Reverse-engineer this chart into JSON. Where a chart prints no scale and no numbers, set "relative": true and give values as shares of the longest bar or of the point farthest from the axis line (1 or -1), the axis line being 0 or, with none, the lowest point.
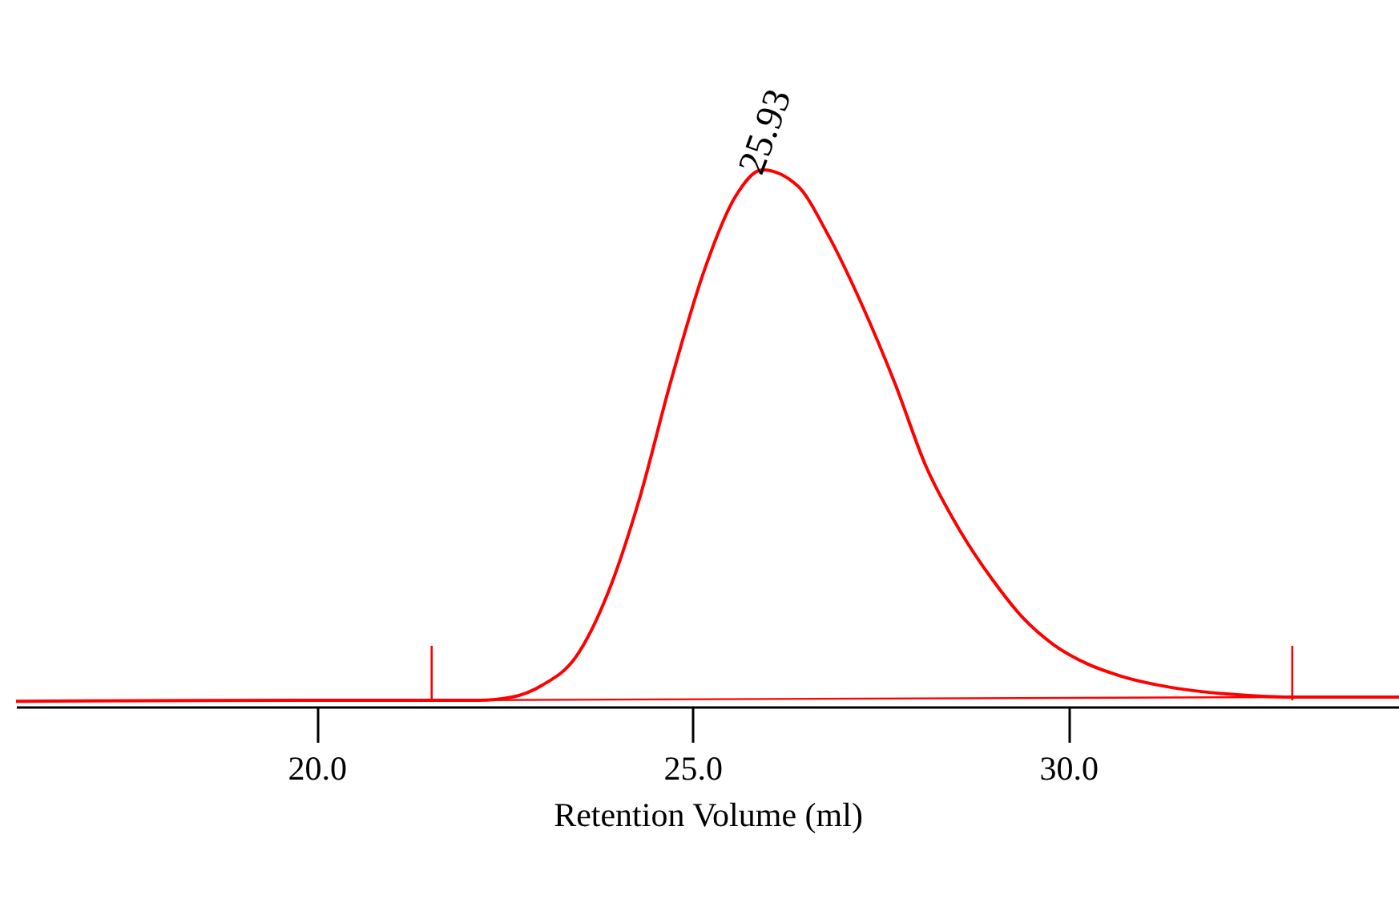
{
  "chart_data": {
    "type": "line",
    "relative": true,
    "xlabel": "Retention Volume (ml)",
    "xlim": [
      16.0,
      34.4
    ],
    "xticks": [
      {
        "value": 20,
        "label": "20.0"
      },
      {
        "value": 25,
        "label": "25.0"
      },
      {
        "value": 30,
        "label": "30.0"
      }
    ],
    "tick_labels": "x",
    "grid": false,
    "legend": false,
    "series": [
      {
        "color": "#ff0000",
        "x": [
          16.0,
          19.8,
          22.15,
          22.6,
          23.0,
          23.45,
          23.87,
          24.3,
          24.7,
          25.15,
          25.57,
          25.93,
          26.4,
          26.8,
          27.25,
          27.7,
          28.1,
          28.55,
          29.0,
          29.4,
          29.8,
          30.25,
          30.7,
          31.5,
          32.4,
          33.0,
          34.4
        ],
        "values": [
          0.01,
          0.012,
          0.012,
          0.018,
          0.04,
          0.093,
          0.21,
          0.39,
          0.6,
          0.81,
          0.95,
          1.0,
          0.97,
          0.88,
          0.75,
          0.6,
          0.45,
          0.33,
          0.235,
          0.165,
          0.116,
          0.08,
          0.057,
          0.033,
          0.021,
          0.018,
          0.018
        ]
      },
      {
        "color": "#ff0000",
        "x": [
          21.53,
          32.98
        ],
        "values": [
          0.012,
          0.018
        ]
      }
    ],
    "ref_lines": [
      {
        "axis": "x",
        "value": 21.53,
        "color": "#ff0000"
      },
      {
        "axis": "x",
        "value": 32.98,
        "color": "#ff0000"
      }
    ],
    "annotations": [
      {
        "text": "25.93",
        "x": 25.93,
        "y": 1.0
      }
    ]
  }
}
